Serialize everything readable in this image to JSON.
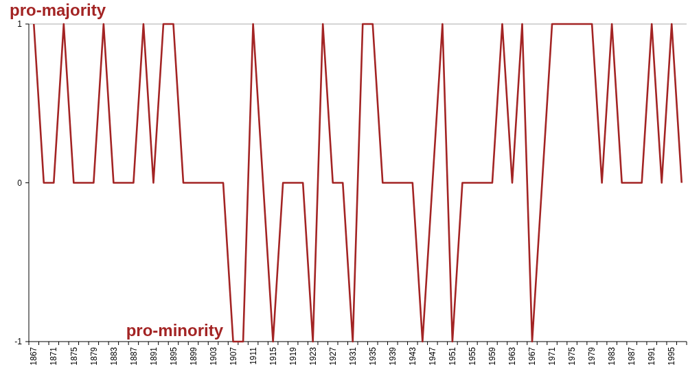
{
  "chart_data": {
    "type": "line",
    "categories": [
      "1867",
      null,
      "1871",
      null,
      "1875",
      null,
      "1879",
      null,
      "1883",
      null,
      "1887",
      null,
      "1891",
      null,
      "1895",
      null,
      "1899",
      null,
      "1903",
      null,
      "1907",
      null,
      "1911",
      null,
      "1915",
      null,
      "1919",
      null,
      "1923",
      null,
      "1927",
      null,
      "1931",
      null,
      "1935",
      null,
      "1939",
      null,
      "1943",
      null,
      "1947",
      null,
      "1951",
      null,
      "1955",
      null,
      "1959",
      null,
      "1963",
      null,
      "1967",
      null,
      "1971",
      null,
      "1975",
      null,
      "1979",
      null,
      "1983",
      null,
      "1987",
      null,
      "1991",
      null,
      "1995",
      null
    ],
    "series": [
      {
        "color": "#a32424",
        "values": [
          1,
          0,
          0,
          1,
          0,
          0,
          0,
          1,
          0,
          0,
          0,
          1,
          0,
          1,
          1,
          0,
          0,
          0,
          0,
          0,
          -1,
          -1,
          1,
          0,
          -1,
          0,
          0,
          0,
          -1,
          1,
          0,
          0,
          -1,
          1,
          1,
          0,
          0,
          0,
          0,
          -1,
          0,
          1,
          -1,
          0,
          0,
          0,
          0,
          1,
          0,
          1,
          -1,
          0,
          1,
          1,
          1,
          1,
          1,
          0,
          1,
          0,
          0,
          0,
          1,
          0,
          1,
          0
        ]
      }
    ],
    "ylim": [
      -1,
      1
    ],
    "yticks": [
      -1,
      0,
      1
    ],
    "marker": "none",
    "line_style": "solid",
    "grid": false,
    "annotations": [
      "pro-majority",
      "pro-minority"
    ]
  }
}
